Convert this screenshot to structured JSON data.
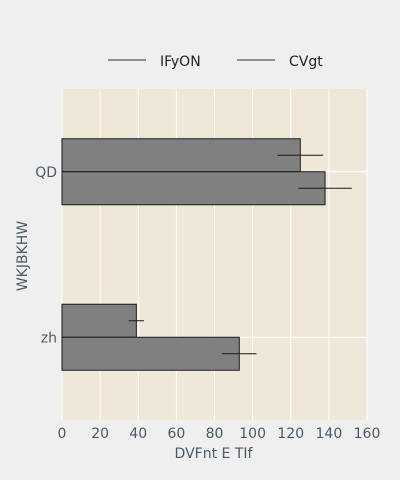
{
  "colors": {
    "page_background": "#efefef",
    "plot_background": "#efe8d8",
    "gridline": "#ffffff",
    "bar_fill": "#808080",
    "bar_edge": "#1a1a1a",
    "error_bar": "#1a1a1a",
    "axis_text": "#4a5a66",
    "legend_text": "#222222"
  },
  "chart_data": {
    "type": "bar",
    "orientation": "horizontal",
    "title": "",
    "xlabel": "DVFnt E  TIf",
    "ylabel": "WKJBKHW",
    "categories": [
      "QD",
      "zh"
    ],
    "xlim": [
      0,
      160
    ],
    "xticks": [
      0,
      20,
      40,
      60,
      80,
      100,
      120,
      140,
      160
    ],
    "grid": true,
    "legend_position": "top",
    "series": [
      {
        "name": "IFyON",
        "values": [
          125,
          39
        ],
        "errors": [
          12,
          4
        ]
      },
      {
        "name": "CVgt",
        "values": [
          138,
          93
        ],
        "errors": [
          14,
          9
        ]
      }
    ]
  }
}
